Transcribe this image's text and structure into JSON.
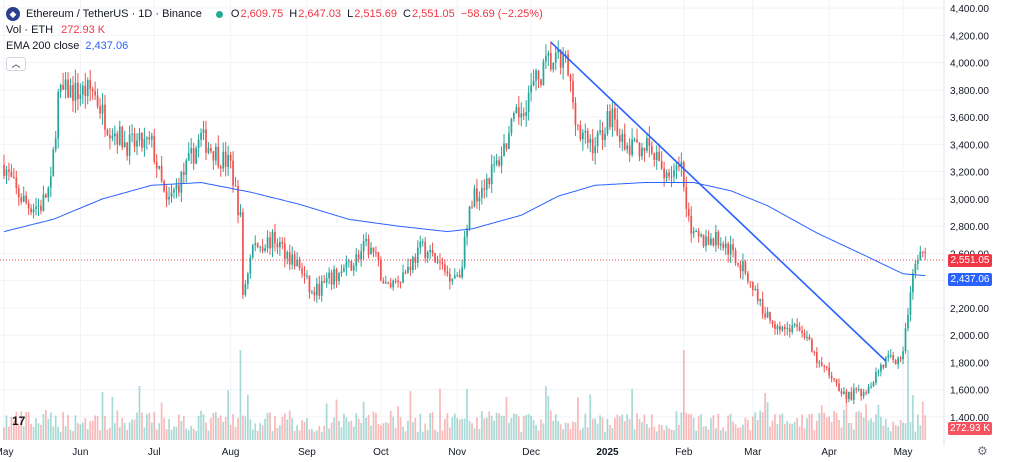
{
  "legend": {
    "symbol_icon": "ethereum-icon",
    "title": "Ethereum / TetherUS · 1D · Binance",
    "ohlc": [
      {
        "key": "O",
        "value": "2,609.75"
      },
      {
        "key": "H",
        "value": "2,647.03"
      },
      {
        "key": "L",
        "value": "2,515.69"
      },
      {
        "key": "C",
        "value": "2,551.05"
      }
    ],
    "change": "−58.69 (−2.25%)",
    "volume_label": "Vol · ETH",
    "volume_value": "272.93 K",
    "ema_label": "EMA 200 close",
    "ema_value": "2,437.06",
    "collapse_icon": "chevron-up-icon"
  },
  "price_tags": {
    "last_price": "2,551.05",
    "ema": "2,437.06",
    "volume": "272.93 K"
  },
  "colors": {
    "up": "#26a69a",
    "down": "#ef5350",
    "ema": "#2962ff",
    "trendline": "#2962ff",
    "last_price_tag": "#f23645",
    "ema_tag": "#2962ff",
    "volume_tag": "#f7525f"
  },
  "chart_data": {
    "type": "candlestick",
    "title": "Ethereum / TetherUS · 1D · Binance",
    "y_axis": {
      "ticks": [
        "4,400.00",
        "4,200.00",
        "4,000.00",
        "3,800.00",
        "3,600.00",
        "3,400.00",
        "3,200.00",
        "3,000.00",
        "2,800.00",
        "2,600.00",
        "2,400.00",
        "2,200.00",
        "2,000.00",
        "1,800.00",
        "1,600.00",
        "1,400.00"
      ],
      "tick_values": [
        4400,
        4200,
        4000,
        3800,
        3600,
        3400,
        3200,
        3000,
        2800,
        2600,
        2400,
        2200,
        2000,
        1800,
        1600,
        1400
      ],
      "ylim": [
        1230,
        4460
      ]
    },
    "x_axis": {
      "ticks": [
        {
          "label": "May",
          "day": 0,
          "bold": false
        },
        {
          "label": "Jun",
          "day": 31,
          "bold": false
        },
        {
          "label": "Jul",
          "day": 61,
          "bold": false
        },
        {
          "label": "Aug",
          "day": 92,
          "bold": false
        },
        {
          "label": "Sep",
          "day": 123,
          "bold": false
        },
        {
          "label": "Oct",
          "day": 153,
          "bold": false
        },
        {
          "label": "Nov",
          "day": 184,
          "bold": false
        },
        {
          "label": "Dec",
          "day": 214,
          "bold": false
        },
        {
          "label": "2025",
          "day": 245,
          "bold": true
        },
        {
          "label": "Feb",
          "day": 276,
          "bold": false
        },
        {
          "label": "Mar",
          "day": 304,
          "bold": false
        },
        {
          "label": "Apr",
          "day": 335,
          "bold": false
        },
        {
          "label": "May",
          "day": 365,
          "bold": false
        }
      ],
      "day_range": [
        0,
        380
      ]
    },
    "price_anchors": [
      [
        0,
        3250
      ],
      [
        5,
        3050
      ],
      [
        10,
        2950
      ],
      [
        15,
        2950
      ],
      [
        19,
        3100
      ],
      [
        22,
        3750
      ],
      [
        26,
        3800
      ],
      [
        30,
        3780
      ],
      [
        36,
        3800
      ],
      [
        42,
        3550
      ],
      [
        50,
        3400
      ],
      [
        60,
        3400
      ],
      [
        66,
        2950
      ],
      [
        72,
        3150
      ],
      [
        80,
        3450
      ],
      [
        88,
        3300
      ],
      [
        92,
        3250
      ],
      [
        96,
        2850
      ],
      [
        97,
        2300
      ],
      [
        101,
        2650
      ],
      [
        110,
        2700
      ],
      [
        120,
        2500
      ],
      [
        125,
        2300
      ],
      [
        132,
        2400
      ],
      [
        140,
        2500
      ],
      [
        147,
        2650
      ],
      [
        150,
        2600
      ],
      [
        155,
        2350
      ],
      [
        162,
        2450
      ],
      [
        170,
        2650
      ],
      [
        180,
        2450
      ],
      [
        185,
        2450
      ],
      [
        190,
        3000
      ],
      [
        200,
        3250
      ],
      [
        207,
        3550
      ],
      [
        214,
        3800
      ],
      [
        221,
        4000
      ],
      [
        228,
        4000
      ],
      [
        234,
        3450
      ],
      [
        240,
        3400
      ],
      [
        247,
        3650
      ],
      [
        252,
        3350
      ],
      [
        260,
        3400
      ],
      [
        268,
        3200
      ],
      [
        275,
        3200
      ],
      [
        280,
        2700
      ],
      [
        290,
        2700
      ],
      [
        296,
        2600
      ],
      [
        303,
        2400
      ],
      [
        309,
        2150
      ],
      [
        316,
        2050
      ],
      [
        324,
        2050
      ],
      [
        330,
        1800
      ],
      [
        336,
        1700
      ],
      [
        342,
        1550
      ],
      [
        350,
        1600
      ],
      [
        357,
        1800
      ],
      [
        365,
        1850
      ],
      [
        368,
        2350
      ],
      [
        372,
        2600
      ],
      [
        374,
        2551
      ]
    ],
    "ema200_anchors": [
      [
        0,
        2760
      ],
      [
        20,
        2850
      ],
      [
        40,
        3000
      ],
      [
        60,
        3100
      ],
      [
        80,
        3120
      ],
      [
        100,
        3050
      ],
      [
        120,
        2960
      ],
      [
        140,
        2850
      ],
      [
        160,
        2800
      ],
      [
        180,
        2760
      ],
      [
        190,
        2780
      ],
      [
        210,
        2880
      ],
      [
        225,
        3020
      ],
      [
        240,
        3100
      ],
      [
        260,
        3120
      ],
      [
        280,
        3120
      ],
      [
        295,
        3060
      ],
      [
        310,
        2950
      ],
      [
        330,
        2750
      ],
      [
        350,
        2580
      ],
      [
        365,
        2450
      ],
      [
        374,
        2437
      ]
    ],
    "trendline": {
      "start": {
        "day": 222,
        "price": 4150
      },
      "end": {
        "day": 358,
        "price": 1810
      }
    },
    "volume": {
      "last": "272.93 K",
      "spike_days": [
        96,
        276,
        367
      ]
    },
    "last_price": 2551.05,
    "ema200_last": 2437.06
  }
}
